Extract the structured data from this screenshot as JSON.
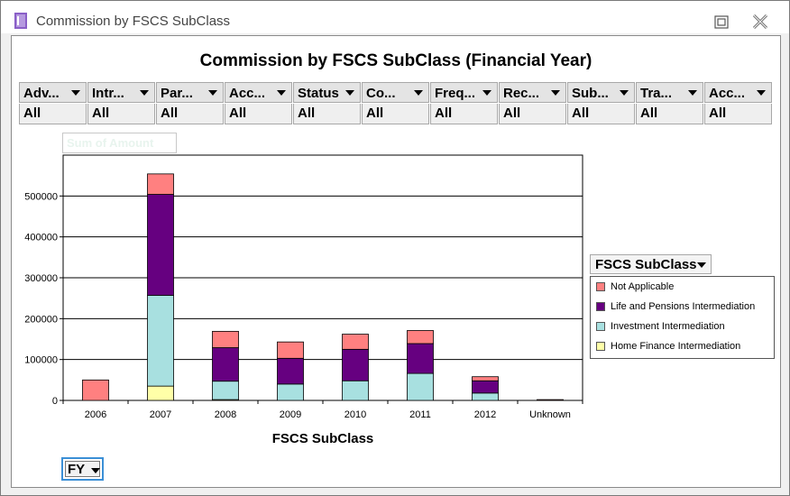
{
  "window": {
    "title": "Commission by FSCS SubClass"
  },
  "report": {
    "title": "Commission by FSCS SubClass (Financial Year)"
  },
  "filters": [
    {
      "label": "Adv...",
      "value": "All"
    },
    {
      "label": "Intr...",
      "value": "All"
    },
    {
      "label": "Par...",
      "value": "All"
    },
    {
      "label": "Acc...",
      "value": "All"
    },
    {
      "label": "Status",
      "value": "All"
    },
    {
      "label": "Co...",
      "value": "All"
    },
    {
      "label": "Freq...",
      "value": "All"
    },
    {
      "label": "Rec...",
      "value": "All"
    },
    {
      "label": "Sub...",
      "value": "All"
    },
    {
      "label": "Tra...",
      "value": "All"
    },
    {
      "label": "Acc...",
      "value": "All"
    }
  ],
  "data_field": {
    "label": "Sum of Amount"
  },
  "legend": {
    "title": "FSCS SubClass"
  },
  "row_field": {
    "label": "FY"
  },
  "colors": {
    "accent": "#3b8fd6"
  },
  "chart_data": {
    "type": "bar",
    "stacked": true,
    "title": "",
    "xlabel": "FSCS SubClass",
    "ylabel": "",
    "categories": [
      "2006",
      "2007",
      "2008",
      "2009",
      "2010",
      "2011",
      "2012",
      "Unknown"
    ],
    "ylim": [
      0,
      600000
    ],
    "yticks": [
      0,
      100000,
      200000,
      300000,
      400000,
      500000
    ],
    "ytick_labels": [
      "0",
      "100000",
      "200000",
      "300000",
      "400000",
      "500000"
    ],
    "grid": true,
    "legend_position": "right",
    "series": [
      {
        "name": "Home Finance Intermediation",
        "color": "#ffffa8",
        "values": [
          0,
          35000,
          2000,
          0,
          0,
          0,
          0,
          0
        ]
      },
      {
        "name": "Investment Intermediation",
        "color": "#a8e0e0",
        "values": [
          0,
          222000,
          45000,
          40000,
          48000,
          66000,
          18000,
          0
        ]
      },
      {
        "name": "Life and Pensions Intermediation",
        "color": "#660080",
        "values": [
          0,
          247000,
          82000,
          63000,
          77000,
          73000,
          30000,
          0
        ]
      },
      {
        "name": "Not Applicable",
        "color": "#ff8080",
        "values": [
          50000,
          50000,
          40000,
          40000,
          37000,
          32000,
          10000,
          2000
        ]
      }
    ]
  }
}
